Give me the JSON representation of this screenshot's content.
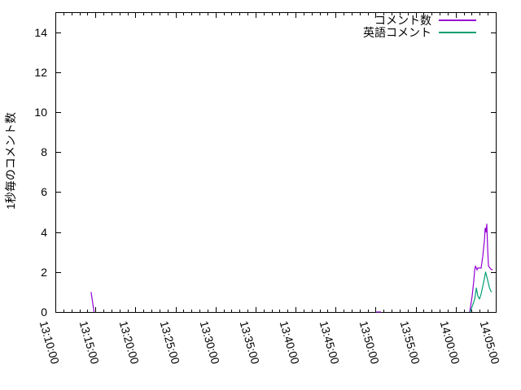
{
  "chart_data": {
    "type": "line",
    "title": "",
    "xlabel": "",
    "ylabel": "1秒毎のコメント数",
    "xlim": [
      "13:10:00",
      "14:05:00"
    ],
    "ylim": [
      0,
      15
    ],
    "grid": false,
    "legend_position": "top-right-inside",
    "background_color": "#ffffff",
    "axis_color": "#000000",
    "x_tick_labels": [
      "13:10:00",
      "13:15:00",
      "13:20:00",
      "13:25:00",
      "13:30:00",
      "13:35:00",
      "13:40:00",
      "13:45:00",
      "13:50:00",
      "13:55:00",
      "14:00:00",
      "14:05:00"
    ],
    "x_major_tick_seconds": 300,
    "x_minor_tick_seconds": 60,
    "y_tick_labels": [
      "0",
      "2",
      "4",
      "6",
      "8",
      "10",
      "12",
      "14"
    ],
    "y_major_tick": 2,
    "series": [
      {
        "name": "コメント数",
        "color": "#9400D3",
        "segments": [
          [
            [
              "13:14:28",
              1
            ],
            [
              "13:14:50",
              0
            ]
          ],
          [
            [
              "13:50:05",
              0
            ],
            [
              "13:50:40",
              0
            ]
          ],
          [
            [
              "14:01:45",
              0
            ],
            [
              "14:02:03",
              0.8
            ],
            [
              "14:02:16",
              1.6
            ],
            [
              "14:02:22",
              2.1
            ],
            [
              "14:02:28",
              2.3
            ],
            [
              "14:02:40",
              2.1
            ],
            [
              "14:02:46",
              2.2
            ],
            [
              "14:03:10",
              2.2
            ],
            [
              "14:03:23",
              2.8
            ],
            [
              "14:03:35",
              3.6
            ],
            [
              "14:03:41",
              4.2
            ],
            [
              "14:03:47",
              4.0
            ],
            [
              "14:03:53",
              4.4
            ],
            [
              "14:03:59",
              3.2
            ],
            [
              "14:04:05",
              2.3
            ],
            [
              "14:04:23",
              2.15
            ],
            [
              "14:04:36",
              2.1
            ]
          ]
        ]
      },
      {
        "name": "英語コメント",
        "color": "#009E73",
        "segments": [
          [
            [
              "14:01:48",
              0
            ],
            [
              "14:02:10",
              0.4
            ],
            [
              "14:02:22",
              0.65
            ],
            [
              "14:02:28",
              0.9
            ],
            [
              "14:02:34",
              1.2
            ],
            [
              "14:02:46",
              0.8
            ],
            [
              "14:02:58",
              0.65
            ],
            [
              "14:03:10",
              0.9
            ],
            [
              "14:03:23",
              1.3
            ],
            [
              "14:03:35",
              1.7
            ],
            [
              "14:03:44",
              2.0
            ],
            [
              "14:03:59",
              1.6
            ],
            [
              "14:04:11",
              1.25
            ],
            [
              "14:04:23",
              1.05
            ],
            [
              "14:04:30",
              1.0
            ]
          ]
        ]
      }
    ]
  }
}
